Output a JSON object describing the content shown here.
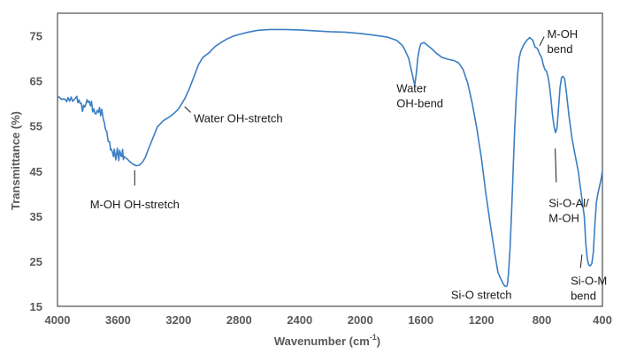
{
  "chart_data": {
    "type": "line",
    "title": "",
    "xlabel_main": "Wavenumber (cm",
    "xlabel_sup": "-1",
    "xlabel_tail": ")",
    "ylabel": "Transmittance (%)",
    "xlim": [
      4000,
      400
    ],
    "ylim": [
      15,
      80
    ],
    "x_ticks": [
      4000,
      3600,
      3200,
      2800,
      2400,
      2000,
      1600,
      1200,
      800,
      400
    ],
    "y_ticks": [
      15,
      25,
      35,
      45,
      55,
      65,
      75
    ],
    "grid": false,
    "line_color": "#3b7ec4",
    "series": [
      {
        "x": [
          4000,
          3960,
          3920,
          3880,
          3850,
          3820,
          3790,
          3760,
          3730,
          3700,
          3680,
          3660,
          3640,
          3620,
          3600,
          3580,
          3560,
          3540,
          3520,
          3500,
          3480,
          3460,
          3440,
          3420,
          3400,
          3370,
          3340,
          3300,
          3260,
          3230,
          3200,
          3160,
          3130,
          3100,
          3070,
          3040,
          3000,
          2960,
          2920,
          2880,
          2840,
          2800,
          2740,
          2680,
          2600,
          2500,
          2400,
          2300,
          2200,
          2100,
          2000,
          1900,
          1820,
          1760,
          1720,
          1700,
          1680,
          1660,
          1650,
          1640,
          1630,
          1620,
          1610,
          1600,
          1580,
          1560,
          1530,
          1500,
          1460,
          1420,
          1380,
          1350,
          1320,
          1290,
          1260,
          1230,
          1200,
          1170,
          1140,
          1110,
          1090,
          1070,
          1055,
          1045,
          1035,
          1030,
          1025,
          1020,
          1010,
          1000,
          990,
          980,
          970,
          960,
          950,
          940,
          920,
          900,
          880,
          860,
          845,
          830,
          815,
          800,
          790,
          780,
          770,
          760,
          750,
          740,
          730,
          720,
          710,
          700,
          690,
          680,
          670,
          660,
          650,
          640,
          620,
          600,
          580,
          560,
          540,
          520,
          510,
          500,
          490,
          480,
          470,
          460,
          450,
          440,
          430,
          420,
          410,
          400
        ],
        "y": [
          61.2,
          61.0,
          60.5,
          61.2,
          60.0,
          59.2,
          60.5,
          58.8,
          58.0,
          57.0,
          54.0,
          51.5,
          49.5,
          48.8,
          48.6,
          48.3,
          48.2,
          47.7,
          47.0,
          46.5,
          46.2,
          46.3,
          46.9,
          48.0,
          49.8,
          52.3,
          54.8,
          56.2,
          57.0,
          57.8,
          58.8,
          61.0,
          63.2,
          65.8,
          68.5,
          70.2,
          71.2,
          72.6,
          73.5,
          74.3,
          74.9,
          75.3,
          75.8,
          76.2,
          76.4,
          76.4,
          76.3,
          76.1,
          75.9,
          75.8,
          75.5,
          75.1,
          74.7,
          74.0,
          72.8,
          71.5,
          70.0,
          67.0,
          65.5,
          64.0,
          66.5,
          70.0,
          72.0,
          73.2,
          73.5,
          73.0,
          72.2,
          71.2,
          70.2,
          69.8,
          69.5,
          69.0,
          67.5,
          64.5,
          60.0,
          54.5,
          48.0,
          40.0,
          33.0,
          26.5,
          22.5,
          21.0,
          20.0,
          19.5,
          19.4,
          19.6,
          20.5,
          22.5,
          28.0,
          36.0,
          45.0,
          54.0,
          61.0,
          66.5,
          70.0,
          71.5,
          73.0,
          74.0,
          74.6,
          74.0,
          72.5,
          72.2,
          71.0,
          70.0,
          68.5,
          67.5,
          67.2,
          66.0,
          64.0,
          61.0,
          57.5,
          55.0,
          53.5,
          54.5,
          59.0,
          63.5,
          65.8,
          66.0,
          65.5,
          63.0,
          57.0,
          52.0,
          48.5,
          45.0,
          40.0,
          35.0,
          29.0,
          25.5,
          24.2,
          24.0,
          24.5,
          27.0,
          33.0,
          38.0,
          40.0,
          41.5,
          43.0,
          45.0
        ]
      }
    ],
    "annotations": [
      {
        "lines": [
          "M-OH OH-stretch"
        ],
        "anchor": "middle",
        "leader": [
          3490,
          45.2,
          3490,
          41.8
        ],
        "label": [
          3490,
          36.7
        ]
      },
      {
        "lines": [
          "Water OH-stretch"
        ],
        "anchor": "start",
        "leader": [
          3160,
          59.3,
          3120,
          58.0
        ],
        "label": [
          3100,
          55.8
        ]
      },
      {
        "lines": [
          "Water",
          "OH-bend"
        ],
        "anchor": "start",
        "leader": null,
        "label": [
          1760,
          62.5
        ]
      },
      {
        "lines": [
          "Si-O stretch"
        ],
        "anchor": "start",
        "leader": null,
        "label": [
          1400,
          16.7
        ]
      },
      {
        "lines": [
          "M-OH",
          "bend"
        ],
        "anchor": "start",
        "leader": [
          785,
          74.8,
          815,
          72.8
        ],
        "label": [
          765,
          74.5
        ]
      },
      {
        "lines": [
          "Si-O-Al/",
          "M-OH"
        ],
        "anchor": "start",
        "leader": [
          712,
          50.0,
          705,
          42.5
        ],
        "label": [
          755,
          37.0
        ]
      },
      {
        "lines": [
          "Si-O-M",
          "bend"
        ],
        "anchor": "start",
        "leader": [
          545,
          23.5,
          535,
          26.5
        ],
        "label": [
          610,
          19.8
        ]
      }
    ]
  }
}
